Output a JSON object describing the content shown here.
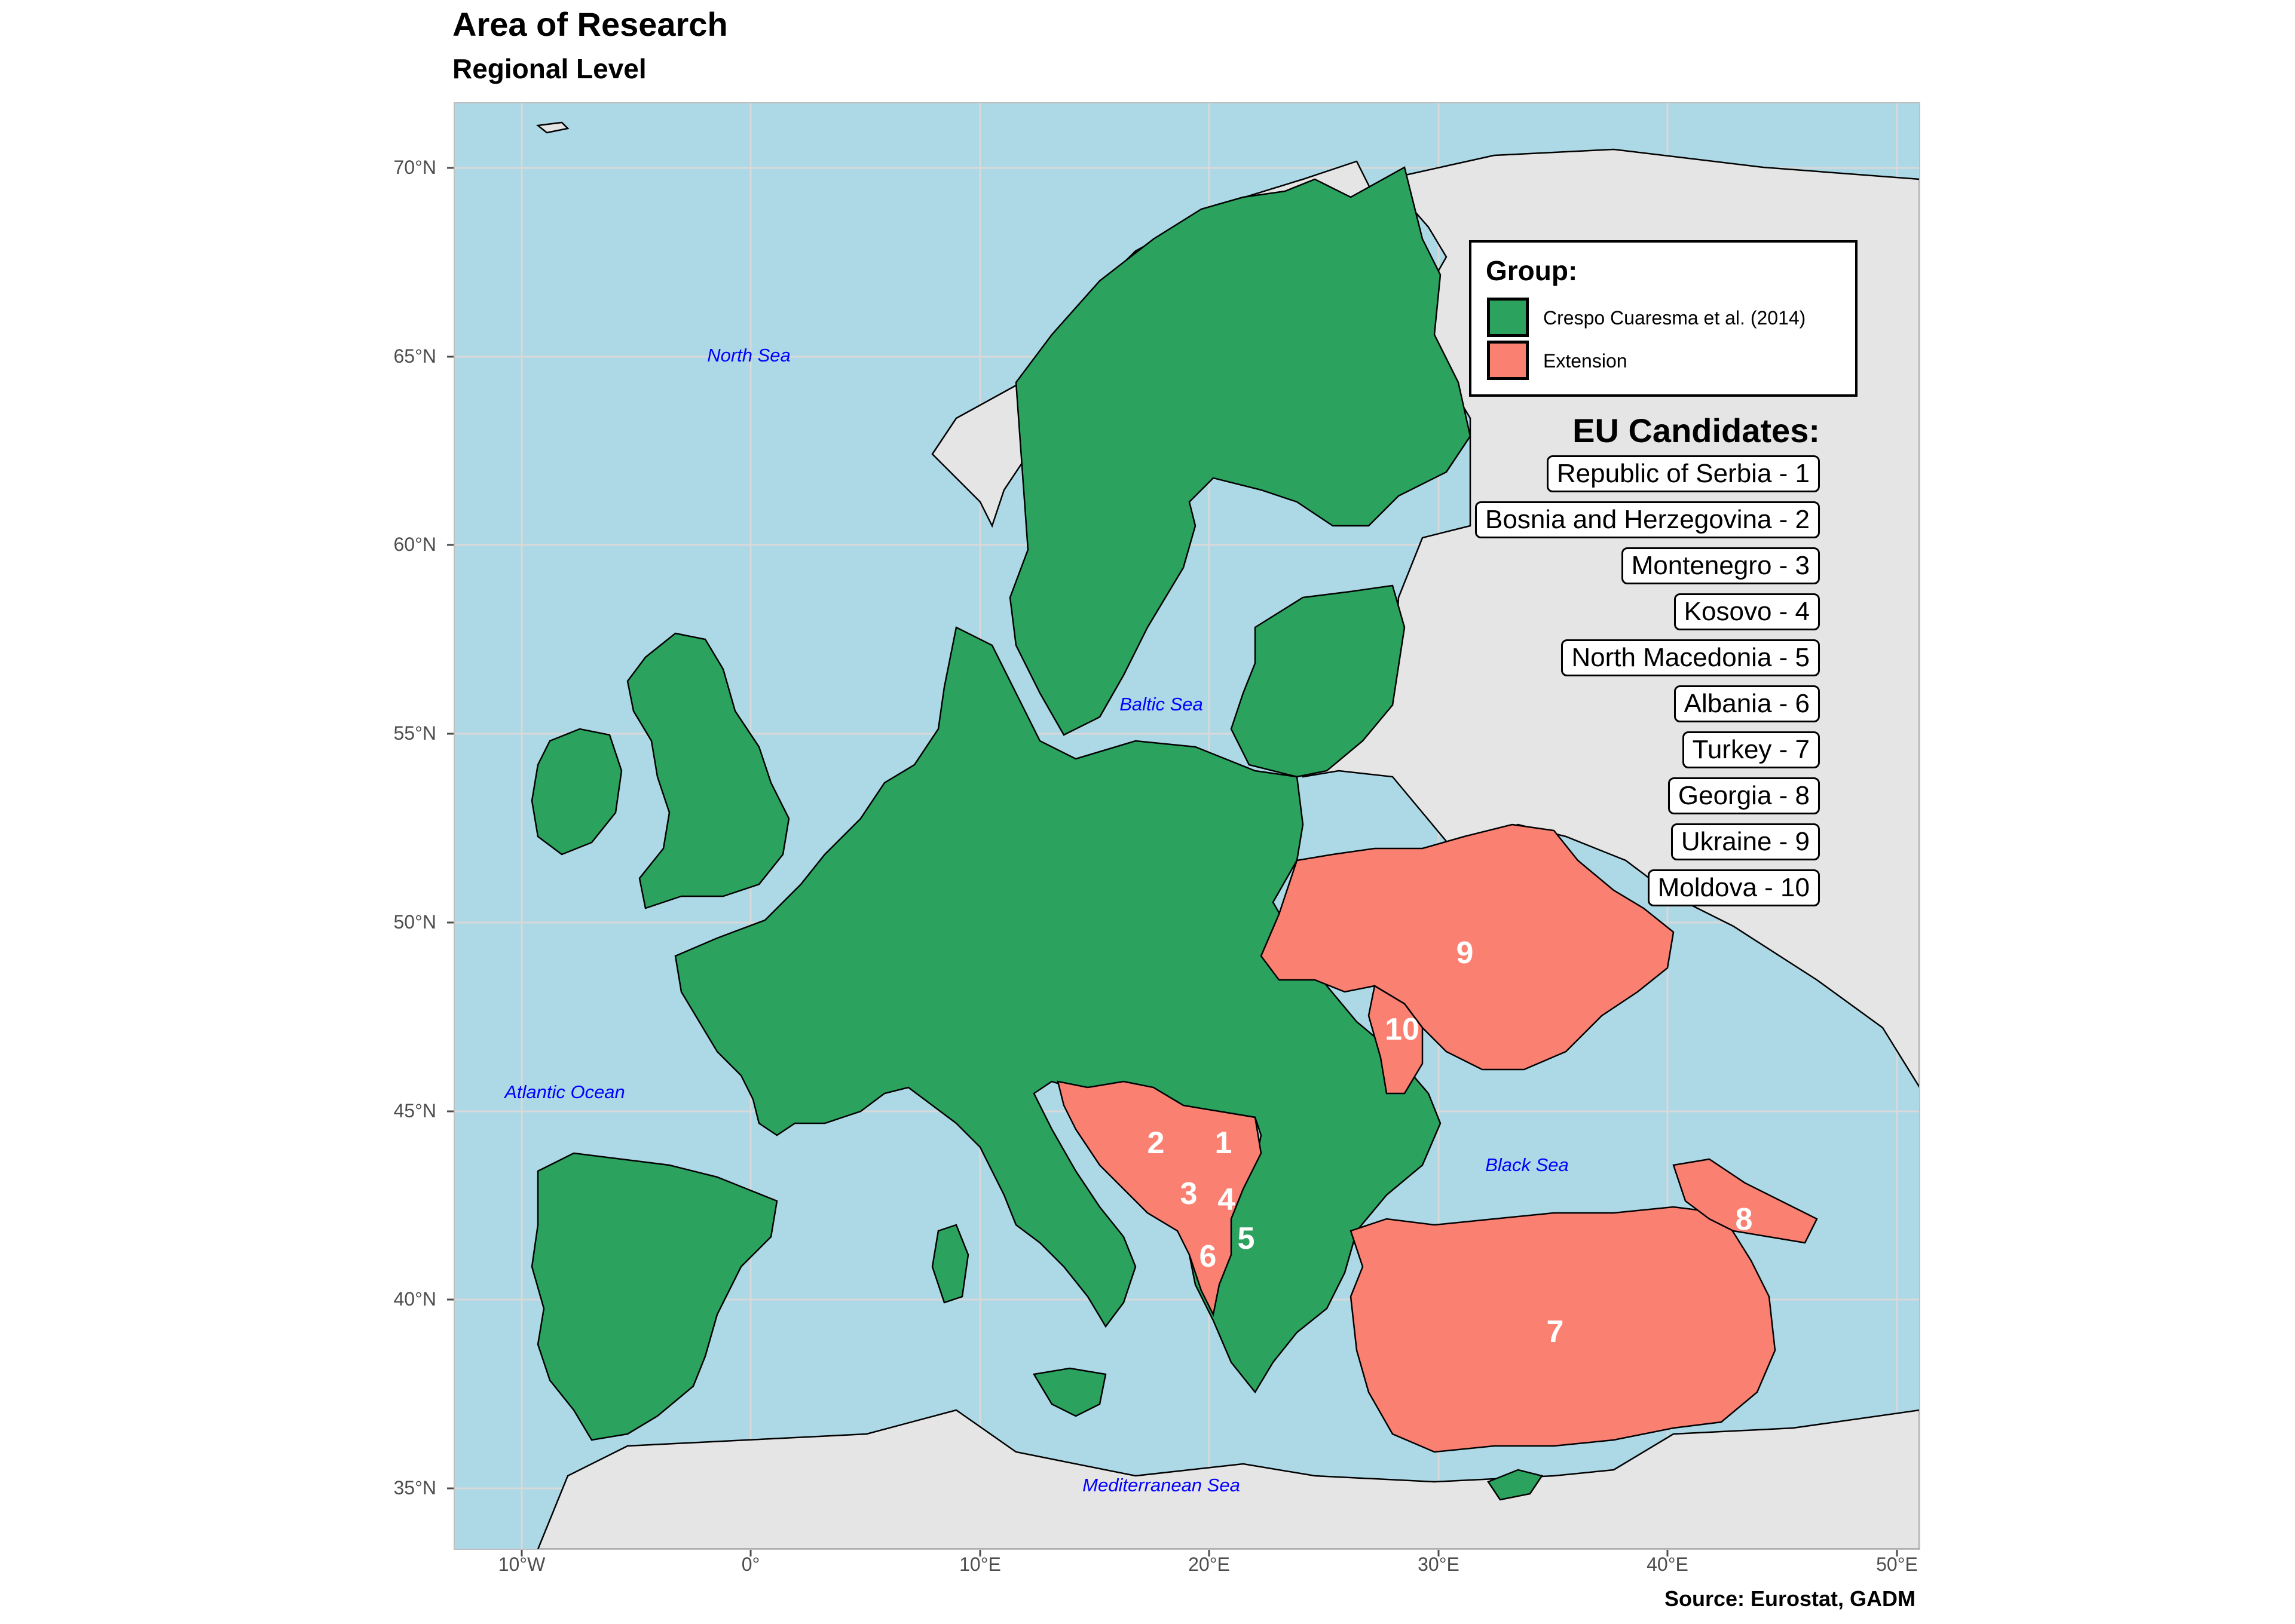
{
  "title": "Area of Research",
  "subtitle": "Regional Level",
  "caption": "Source: Eurostat, GADM",
  "axes": {
    "y_ticks": [
      {
        "value": 70,
        "label": "70°N"
      },
      {
        "value": 65,
        "label": "65°N"
      },
      {
        "value": 60,
        "label": "60°N"
      },
      {
        "value": 55,
        "label": "55°N"
      },
      {
        "value": 50,
        "label": "50°N"
      },
      {
        "value": 45,
        "label": "45°N"
      },
      {
        "value": 40,
        "label": "40°N"
      },
      {
        "value": 35,
        "label": "35°N"
      }
    ],
    "x_ticks": [
      {
        "value": -10,
        "label": "10°W"
      },
      {
        "value": 0,
        "label": "0°"
      },
      {
        "value": 10,
        "label": "10°E"
      },
      {
        "value": 20,
        "label": "20°E"
      },
      {
        "value": 30,
        "label": "30°E"
      },
      {
        "value": 40,
        "label": "40°E"
      },
      {
        "value": 50,
        "label": "50°E"
      }
    ]
  },
  "seas": [
    {
      "id": "north-sea",
      "label": "North Sea"
    },
    {
      "id": "baltic-sea",
      "label": "Baltic Sea"
    },
    {
      "id": "atlantic-ocean",
      "label": "Atlantic Ocean"
    },
    {
      "id": "black-sea",
      "label": "Black Sea"
    },
    {
      "id": "mediterranean-sea",
      "label": "Mediterranean Sea"
    }
  ],
  "legend": {
    "title": "Group:",
    "items": [
      {
        "label": "Crespo Cuaresma et al. (2014)",
        "color": "#2ca25f"
      },
      {
        "label": "Extension",
        "color": "#fa8072"
      }
    ]
  },
  "candidates": {
    "title": "EU Candidates:",
    "items": [
      "Republic of Serbia - 1",
      "Bosnia and Herzegovina - 2",
      "Montenegro - 3",
      "Kosovo - 4",
      "North Macedonia - 5",
      "Albania - 6",
      "Turkey - 7",
      "Georgia - 8",
      "Ukraine - 9",
      "Moldova - 10"
    ]
  },
  "map_numbers": [
    "1",
    "2",
    "3",
    "4",
    "5",
    "6",
    "7",
    "8",
    "9",
    "10"
  ],
  "colors": {
    "water": "#add8e6",
    "land_other": "#e5e5e5",
    "group_original": "#2ca25f",
    "group_extension": "#fa8072"
  }
}
